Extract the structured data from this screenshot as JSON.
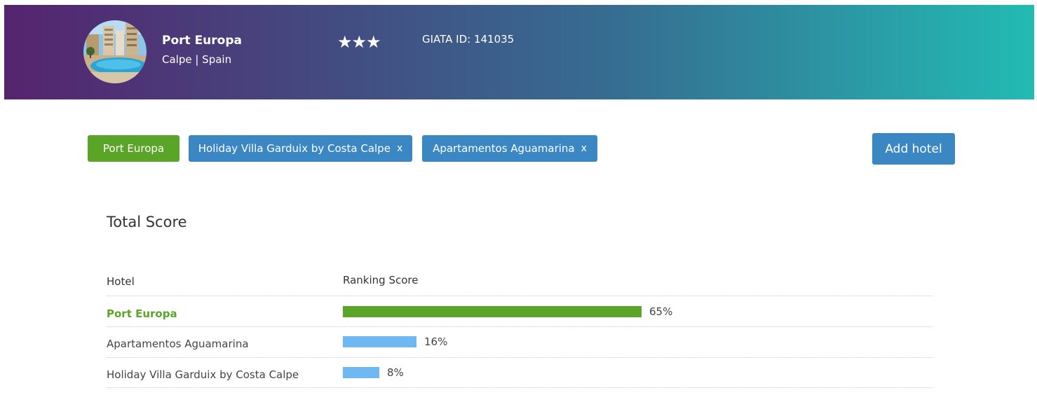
{
  "hotel": {
    "name": "Port Europa",
    "location": "Calpe | Spain",
    "stars": "★★★",
    "giata": "GIATA ID: 141035",
    "avatar_icon": "hotel-pool-photo"
  },
  "chips": [
    {
      "label": "Port Europa",
      "color": "#5aa427",
      "removable": false
    },
    {
      "label": "Holiday Villa Garduix by Costa Calpe",
      "color": "#3a87c3",
      "removable": true,
      "remove_label": "x"
    },
    {
      "label": "Apartamentos Aguamarina",
      "color": "#3a87c3",
      "removable": true,
      "remove_label": "x"
    }
  ],
  "add_button_label": "Add hotel",
  "section_title": "Total Score",
  "table": {
    "headers": [
      "Hotel",
      "Ranking Score"
    ],
    "rows": [
      {
        "hotel": "Port Europa",
        "score": 65,
        "score_label": "65%",
        "bar_color": "#5aa427",
        "highlight": true
      },
      {
        "hotel": "Apartamentos Aguamarina",
        "score": 16,
        "score_label": "16%",
        "bar_color": "#6fb8f2",
        "highlight": false
      },
      {
        "hotel": "Holiday Villa Garduix by Costa Calpe",
        "score": 8,
        "score_label": "8%",
        "bar_color": "#6fb8f2",
        "highlight": false
      }
    ]
  },
  "chart_data": {
    "type": "bar",
    "categories": [
      "Port Europa",
      "Apartamentos Aguamarina",
      "Holiday Villa Garduix by Costa Calpe"
    ],
    "values": [
      65,
      16,
      8
    ],
    "title": "Total Score",
    "xlabel": "Hotel",
    "ylabel": "Ranking Score",
    "ylim": [
      0,
      100
    ]
  },
  "colors": {
    "accent_green": "#5aa427",
    "accent_blue": "#3a87c3",
    "bar_light_blue": "#6fb8f2"
  }
}
